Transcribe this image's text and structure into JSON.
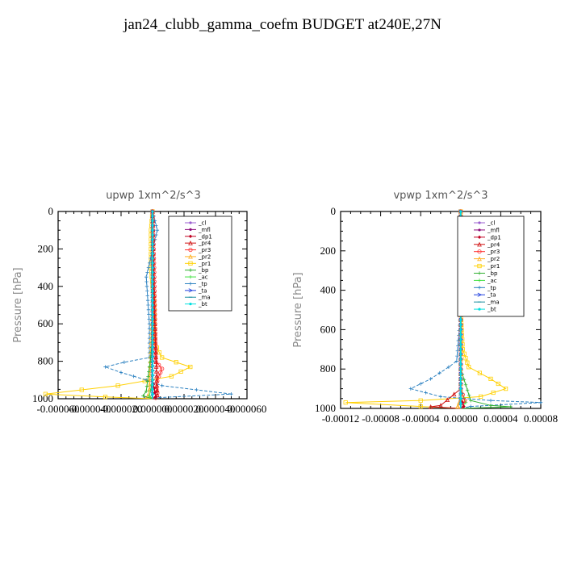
{
  "title": "jan24_clubb_gamma_coefm  BUDGET at240E,27N",
  "legend_series": [
    {
      "name": "_cl",
      "color": "#9b5fd0",
      "marker": "dot"
    },
    {
      "name": "_mfl",
      "color": "#8b0a7a",
      "marker": "dot"
    },
    {
      "name": "_dp1",
      "color": "#c00020",
      "marker": "diamond"
    },
    {
      "name": "_pr4",
      "color": "#d01010",
      "marker": "tri"
    },
    {
      "name": "_pr3",
      "color": "#ff3030",
      "marker": "circle"
    },
    {
      "name": "_pr2",
      "color": "#ffb020",
      "marker": "tri"
    },
    {
      "name": "_pr1",
      "color": "#ffd000",
      "marker": "square"
    },
    {
      "name": "_bp",
      "color": "#30b030",
      "marker": "cross"
    },
    {
      "name": "_ac",
      "color": "#40e040",
      "marker": "x"
    },
    {
      "name": "_tp",
      "color": "#2a80c0",
      "marker": "star"
    },
    {
      "name": "_ta",
      "color": "#2040e0",
      "marker": "arrow"
    },
    {
      "name": "_ma",
      "color": "#1a8fa0",
      "marker": "dash"
    },
    {
      "name": "_bt",
      "color": "#00e0e0",
      "marker": "dot"
    }
  ],
  "chart_data": [
    {
      "type": "line",
      "title": "upwp   1xm^2/s^3",
      "ylabel": "Pressure [hPa]",
      "xlim": [
        -6e-05,
        6e-05
      ],
      "ylim": [
        1000,
        0
      ],
      "y_inverted": true,
      "x_ticks": [
        "-0.000060",
        "-0.000040",
        "-0.000020",
        "0.000000",
        "0.000020",
        "0.000040",
        "0.000060"
      ],
      "y_ticks": [
        "0",
        "200",
        "400",
        "600",
        "800",
        "1000"
      ],
      "legend_position": "top-right",
      "series": [
        {
          "name": "_pr1",
          "points": [
            [
              0,
              0
            ],
            [
              -1e-06,
              100
            ],
            [
              -1e-06,
              300
            ],
            [
              1e-06,
              500
            ],
            [
              1e-06,
              700
            ],
            [
              6e-06,
              780
            ],
            [
              2.4e-05,
              830
            ],
            [
              1.2e-05,
              880
            ],
            [
              -2.2e-05,
              930
            ],
            [
              -6.8e-05,
              975
            ],
            [
              -3e-05,
              990
            ],
            [
              0,
              1000
            ]
          ]
        },
        {
          "name": "_tp",
          "points": [
            [
              0,
              0
            ],
            [
              3e-06,
              100
            ],
            [
              -4e-06,
              350
            ],
            [
              -2e-06,
              600
            ],
            [
              -2e-06,
              780
            ],
            [
              -1.8e-05,
              805
            ],
            [
              -3e-05,
              830
            ],
            [
              -2e-05,
              860
            ],
            [
              -4e-06,
              900
            ],
            [
              6e-06,
              930
            ],
            [
              5e-05,
              975
            ],
            [
              2e-06,
              995
            ],
            [
              0,
              1000
            ]
          ]
        },
        {
          "name": "_pr3",
          "points": [
            [
              0,
              0
            ],
            [
              1e-06,
              300
            ],
            [
              2e-06,
              800
            ],
            [
              6e-06,
              840
            ],
            [
              4e-06,
              880
            ],
            [
              2e-06,
              930
            ],
            [
              3e-06,
              970
            ],
            [
              2e-06,
              995
            ],
            [
              0,
              1000
            ]
          ]
        },
        {
          "name": "_pr2",
          "points": [
            [
              0,
              0
            ],
            [
              0,
              500
            ],
            [
              -2e-06,
              950
            ],
            [
              -3e-06,
              985
            ],
            [
              0,
              1000
            ]
          ]
        },
        {
          "name": "_bp",
          "points": [
            [
              0,
              0
            ],
            [
              0,
              700
            ],
            [
              -4e-06,
              960
            ],
            [
              -6e-06,
              985
            ],
            [
              0,
              1000
            ]
          ]
        },
        {
          "name": "_ac",
          "points": [
            [
              0,
              0
            ],
            [
              0,
              900
            ],
            [
              -2e-06,
              985
            ],
            [
              0,
              1000
            ]
          ]
        },
        {
          "name": "_pr4",
          "points": [
            [
              0,
              0
            ],
            [
              1e-06,
              500
            ],
            [
              3e-06,
              980
            ],
            [
              0,
              1000
            ]
          ]
        },
        {
          "name": "_ma",
          "points": [
            [
              0,
              0
            ],
            [
              0,
              1000
            ]
          ]
        },
        {
          "name": "_ta",
          "points": [
            [
              0,
              0
            ],
            [
              0,
              1000
            ]
          ]
        },
        {
          "name": "_dp1",
          "points": [
            [
              0,
              0
            ],
            [
              0,
              900
            ],
            [
              2e-06,
              990
            ],
            [
              0,
              1000
            ]
          ]
        },
        {
          "name": "_cl",
          "points": [
            [
              0,
              0
            ],
            [
              0,
              1000
            ]
          ]
        },
        {
          "name": "_mfl",
          "points": [
            [
              0,
              0
            ],
            [
              0,
              1000
            ]
          ]
        },
        {
          "name": "_bt",
          "points": [
            [
              0,
              0
            ],
            [
              0,
              1000
            ]
          ]
        }
      ]
    },
    {
      "type": "line",
      "title": "vpwp   1xm^2/s^3",
      "ylabel": "Pressure [hPa]",
      "xlim": [
        -0.00012,
        8e-05
      ],
      "ylim": [
        1000,
        0
      ],
      "y_inverted": true,
      "x_ticks": [
        "-0.00012",
        "-0.00008",
        "-0.00004",
        "0.00000",
        "0.00004",
        "0.00008"
      ],
      "y_ticks": [
        "0",
        "200",
        "400",
        "600",
        "800",
        "1000"
      ],
      "legend_position": "top-right",
      "series": [
        {
          "name": "_pr1",
          "points": [
            [
              0,
              0
            ],
            [
              0,
              500
            ],
            [
              2e-06,
              700
            ],
            [
              8e-06,
              790
            ],
            [
              3e-05,
              850
            ],
            [
              4.5e-05,
              900
            ],
            [
              2e-05,
              940
            ],
            [
              -4e-05,
              960
            ],
            [
              -0.000115,
              970
            ],
            [
              -4e-05,
              990
            ],
            [
              0,
              1000
            ]
          ]
        },
        {
          "name": "_tp",
          "points": [
            [
              0,
              0
            ],
            [
              0,
              500
            ],
            [
              -4e-06,
              760
            ],
            [
              -1.2e-05,
              790
            ],
            [
              -3e-05,
              850
            ],
            [
              -5e-05,
              900
            ],
            [
              -2e-05,
              940
            ],
            [
              3e-05,
              960
            ],
            [
              8e-05,
              970
            ],
            [
              1e-05,
              990
            ],
            [
              0,
              1000
            ]
          ]
        },
        {
          "name": "_bp",
          "points": [
            [
              0,
              0
            ],
            [
              0,
              800
            ],
            [
              1e-05,
              960
            ],
            [
              3e-05,
              985
            ],
            [
              5e-05,
              992
            ],
            [
              0,
              1000
            ]
          ]
        },
        {
          "name": "_ac",
          "points": [
            [
              0,
              0
            ],
            [
              0,
              900
            ],
            [
              5e-06,
              970
            ],
            [
              0,
              1000
            ]
          ]
        },
        {
          "name": "_pr3",
          "points": [
            [
              0,
              0
            ],
            [
              0,
              900
            ],
            [
              4e-06,
              960
            ],
            [
              2e-06,
              990
            ],
            [
              0,
              1000
            ]
          ]
        },
        {
          "name": "_pr4",
          "points": [
            [
              0,
              0
            ],
            [
              0,
              900
            ],
            [
              -2e-05,
              985
            ],
            [
              -3e-05,
              992
            ],
            [
              0,
              1000
            ]
          ]
        },
        {
          "name": "_pr2",
          "points": [
            [
              0,
              0
            ],
            [
              0,
              950
            ],
            [
              -3e-06,
              990
            ],
            [
              0,
              1000
            ]
          ]
        },
        {
          "name": "_dp1",
          "points": [
            [
              0,
              0
            ],
            [
              0,
              950
            ],
            [
              3e-06,
              990
            ],
            [
              0,
              1000
            ]
          ]
        },
        {
          "name": "_ma",
          "points": [
            [
              0,
              0
            ],
            [
              0,
              1000
            ]
          ]
        },
        {
          "name": "_ta",
          "points": [
            [
              0,
              0
            ],
            [
              0,
              1000
            ]
          ]
        },
        {
          "name": "_cl",
          "points": [
            [
              0,
              0
            ],
            [
              0,
              1000
            ]
          ]
        },
        {
          "name": "_mfl",
          "points": [
            [
              0,
              0
            ],
            [
              0,
              1000
            ]
          ]
        },
        {
          "name": "_bt",
          "points": [
            [
              0,
              0
            ],
            [
              0,
              1000
            ]
          ]
        }
      ]
    }
  ]
}
